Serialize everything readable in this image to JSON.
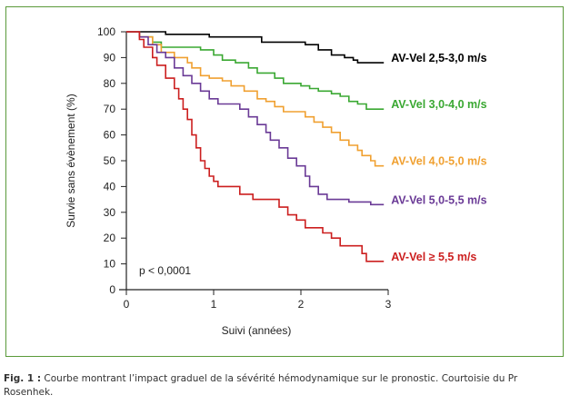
{
  "chart_data": {
    "type": "line",
    "title": "",
    "xlabel": "Suivi (années)",
    "ylabel": "Survie sans évènement (%)",
    "xlim": [
      0,
      3
    ],
    "ylim": [
      0,
      100
    ],
    "x_ticks": [
      "0",
      "1",
      "2",
      "3"
    ],
    "y_ticks": [
      "0",
      "10",
      "20",
      "30",
      "40",
      "50",
      "60",
      "70",
      "80",
      "90",
      "100"
    ],
    "grid": false,
    "annotation": "p < 0,0001",
    "series": [
      {
        "name": "AV-Vel 2,5-3,0 m/s",
        "color": "#000000",
        "points": [
          [
            0,
            100
          ],
          [
            0.45,
            100
          ],
          [
            0.45,
            99
          ],
          [
            0.95,
            99
          ],
          [
            0.95,
            98
          ],
          [
            1.55,
            98
          ],
          [
            1.55,
            96
          ],
          [
            2.05,
            96
          ],
          [
            2.05,
            95
          ],
          [
            2.2,
            95
          ],
          [
            2.2,
            93
          ],
          [
            2.35,
            93
          ],
          [
            2.35,
            91
          ],
          [
            2.5,
            91
          ],
          [
            2.5,
            90
          ],
          [
            2.6,
            90
          ],
          [
            2.6,
            89
          ],
          [
            2.65,
            89
          ],
          [
            2.65,
            88
          ],
          [
            2.95,
            88
          ]
        ]
      },
      {
        "name": "AV-Vel 3,0-4,0 m/s",
        "color": "#3aa832",
        "points": [
          [
            0,
            100
          ],
          [
            0.15,
            100
          ],
          [
            0.15,
            98
          ],
          [
            0.3,
            98
          ],
          [
            0.3,
            96
          ],
          [
            0.4,
            96
          ],
          [
            0.4,
            94
          ],
          [
            0.85,
            94
          ],
          [
            0.85,
            93
          ],
          [
            1.0,
            93
          ],
          [
            1.0,
            91
          ],
          [
            1.1,
            91
          ],
          [
            1.1,
            89
          ],
          [
            1.25,
            89
          ],
          [
            1.25,
            88
          ],
          [
            1.4,
            88
          ],
          [
            1.4,
            86
          ],
          [
            1.5,
            86
          ],
          [
            1.5,
            84
          ],
          [
            1.7,
            84
          ],
          [
            1.7,
            82
          ],
          [
            1.8,
            82
          ],
          [
            1.8,
            80
          ],
          [
            2.0,
            80
          ],
          [
            2.0,
            79
          ],
          [
            2.1,
            79
          ],
          [
            2.1,
            78
          ],
          [
            2.2,
            78
          ],
          [
            2.2,
            77
          ],
          [
            2.35,
            77
          ],
          [
            2.35,
            76
          ],
          [
            2.45,
            76
          ],
          [
            2.45,
            75
          ],
          [
            2.55,
            75
          ],
          [
            2.55,
            73
          ],
          [
            2.65,
            73
          ],
          [
            2.65,
            72
          ],
          [
            2.75,
            72
          ],
          [
            2.75,
            70
          ],
          [
            2.95,
            70
          ]
        ]
      },
      {
        "name": "AV-Vel 4,0-5,0 m/s",
        "color": "#f0a030",
        "points": [
          [
            0,
            100
          ],
          [
            0.15,
            100
          ],
          [
            0.15,
            98
          ],
          [
            0.3,
            98
          ],
          [
            0.3,
            95
          ],
          [
            0.4,
            95
          ],
          [
            0.4,
            92
          ],
          [
            0.55,
            92
          ],
          [
            0.55,
            90
          ],
          [
            0.7,
            90
          ],
          [
            0.7,
            88
          ],
          [
            0.75,
            88
          ],
          [
            0.75,
            86
          ],
          [
            0.85,
            86
          ],
          [
            0.85,
            83
          ],
          [
            0.95,
            83
          ],
          [
            0.95,
            82
          ],
          [
            1.1,
            82
          ],
          [
            1.1,
            81
          ],
          [
            1.2,
            81
          ],
          [
            1.2,
            79
          ],
          [
            1.35,
            79
          ],
          [
            1.35,
            77
          ],
          [
            1.5,
            77
          ],
          [
            1.5,
            74
          ],
          [
            1.6,
            74
          ],
          [
            1.6,
            73
          ],
          [
            1.7,
            73
          ],
          [
            1.7,
            71
          ],
          [
            1.8,
            71
          ],
          [
            1.8,
            69
          ],
          [
            2.05,
            69
          ],
          [
            2.05,
            67
          ],
          [
            2.15,
            67
          ],
          [
            2.15,
            65
          ],
          [
            2.25,
            65
          ],
          [
            2.25,
            63
          ],
          [
            2.35,
            63
          ],
          [
            2.35,
            61
          ],
          [
            2.45,
            61
          ],
          [
            2.45,
            58
          ],
          [
            2.55,
            58
          ],
          [
            2.55,
            56
          ],
          [
            2.65,
            56
          ],
          [
            2.65,
            54
          ],
          [
            2.7,
            54
          ],
          [
            2.7,
            52
          ],
          [
            2.8,
            52
          ],
          [
            2.8,
            50
          ],
          [
            2.85,
            50
          ],
          [
            2.85,
            48
          ],
          [
            2.95,
            48
          ]
        ]
      },
      {
        "name": "AV-Vel 5,0-5,5 m/s",
        "color": "#6a3a96",
        "points": [
          [
            0,
            100
          ],
          [
            0.15,
            100
          ],
          [
            0.15,
            98
          ],
          [
            0.25,
            98
          ],
          [
            0.25,
            95
          ],
          [
            0.35,
            95
          ],
          [
            0.35,
            92
          ],
          [
            0.45,
            92
          ],
          [
            0.45,
            90
          ],
          [
            0.55,
            90
          ],
          [
            0.55,
            86
          ],
          [
            0.65,
            86
          ],
          [
            0.65,
            83
          ],
          [
            0.75,
            83
          ],
          [
            0.75,
            80
          ],
          [
            0.85,
            80
          ],
          [
            0.85,
            77
          ],
          [
            0.95,
            77
          ],
          [
            0.95,
            74
          ],
          [
            1.05,
            74
          ],
          [
            1.05,
            72
          ],
          [
            1.3,
            72
          ],
          [
            1.3,
            70
          ],
          [
            1.4,
            70
          ],
          [
            1.4,
            67
          ],
          [
            1.5,
            67
          ],
          [
            1.5,
            64
          ],
          [
            1.6,
            64
          ],
          [
            1.6,
            61
          ],
          [
            1.65,
            61
          ],
          [
            1.65,
            58
          ],
          [
            1.75,
            58
          ],
          [
            1.75,
            55
          ],
          [
            1.85,
            55
          ],
          [
            1.85,
            51
          ],
          [
            1.95,
            51
          ],
          [
            1.95,
            48
          ],
          [
            2.05,
            48
          ],
          [
            2.05,
            44
          ],
          [
            2.1,
            44
          ],
          [
            2.1,
            40
          ],
          [
            2.2,
            40
          ],
          [
            2.2,
            37
          ],
          [
            2.3,
            37
          ],
          [
            2.3,
            35
          ],
          [
            2.55,
            35
          ],
          [
            2.55,
            34
          ],
          [
            2.8,
            34
          ],
          [
            2.8,
            33
          ],
          [
            2.95,
            33
          ]
        ]
      },
      {
        "name": "AV-Vel ≥ 5,5 m/s",
        "color": "#cc1f1f",
        "points": [
          [
            0,
            100
          ],
          [
            0.15,
            100
          ],
          [
            0.15,
            97
          ],
          [
            0.2,
            97
          ],
          [
            0.2,
            94
          ],
          [
            0.3,
            94
          ],
          [
            0.3,
            90
          ],
          [
            0.35,
            90
          ],
          [
            0.35,
            87
          ],
          [
            0.45,
            87
          ],
          [
            0.45,
            82
          ],
          [
            0.55,
            82
          ],
          [
            0.55,
            78
          ],
          [
            0.6,
            78
          ],
          [
            0.6,
            74
          ],
          [
            0.65,
            74
          ],
          [
            0.65,
            70
          ],
          [
            0.7,
            70
          ],
          [
            0.7,
            66
          ],
          [
            0.75,
            66
          ],
          [
            0.75,
            60
          ],
          [
            0.8,
            60
          ],
          [
            0.8,
            55
          ],
          [
            0.85,
            55
          ],
          [
            0.85,
            50
          ],
          [
            0.9,
            50
          ],
          [
            0.9,
            47
          ],
          [
            0.95,
            47
          ],
          [
            0.95,
            44
          ],
          [
            1.0,
            44
          ],
          [
            1.0,
            42
          ],
          [
            1.05,
            42
          ],
          [
            1.05,
            40
          ],
          [
            1.3,
            40
          ],
          [
            1.3,
            37
          ],
          [
            1.45,
            37
          ],
          [
            1.45,
            35
          ],
          [
            1.75,
            35
          ],
          [
            1.75,
            32
          ],
          [
            1.85,
            32
          ],
          [
            1.85,
            29
          ],
          [
            1.95,
            29
          ],
          [
            1.95,
            27
          ],
          [
            2.05,
            27
          ],
          [
            2.05,
            24
          ],
          [
            2.25,
            24
          ],
          [
            2.25,
            22
          ],
          [
            2.35,
            22
          ],
          [
            2.35,
            20
          ],
          [
            2.45,
            20
          ],
          [
            2.45,
            17
          ],
          [
            2.7,
            17
          ],
          [
            2.7,
            14
          ],
          [
            2.75,
            14
          ],
          [
            2.75,
            11
          ],
          [
            2.95,
            11
          ]
        ]
      }
    ]
  },
  "caption": {
    "label": "Fig. 1 :",
    "text": " Courbe montrant l’impact graduel de la sévérité hémodynamique sur le pronostic. Courtoisie du Pr Rosenhek."
  }
}
